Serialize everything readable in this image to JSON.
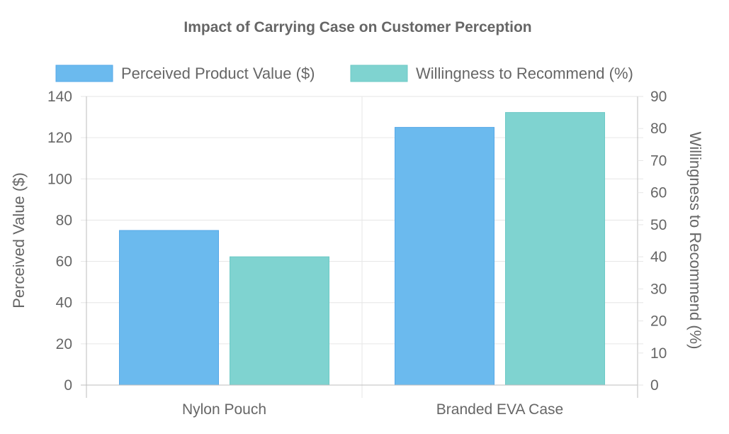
{
  "chart_data": {
    "type": "bar",
    "title": "Impact of Carrying Case on Customer Perception",
    "categories": [
      "Nylon Pouch",
      "Branded EVA Case"
    ],
    "series": [
      {
        "name": "Perceived Product Value ($)",
        "axis": "left",
        "values": [
          75,
          125
        ],
        "color": "#6bbaee",
        "border_color": "#56a8e8"
      },
      {
        "name": "Willingness to Recommend (%)",
        "axis": "right",
        "values": [
          40,
          85
        ],
        "color": "#7fd3d0",
        "border_color": "#6cc9c6"
      }
    ],
    "y_left": {
      "label": "Perceived Value ($)",
      "min": 0,
      "max": 140,
      "step": 20,
      "ticks": [
        "0",
        "20",
        "40",
        "60",
        "80",
        "100",
        "120",
        "140"
      ]
    },
    "y_right": {
      "label": "Willingness to Recommend (%)",
      "min": 0,
      "max": 90,
      "step": 10,
      "ticks": [
        "0",
        "10",
        "20",
        "30",
        "40",
        "50",
        "60",
        "70",
        "80",
        "90"
      ]
    },
    "legend_position": "top",
    "grid": true
  },
  "colors": {
    "text": "#666666",
    "grid": "#e6e6e6",
    "axis": "#bdbdbd"
  }
}
